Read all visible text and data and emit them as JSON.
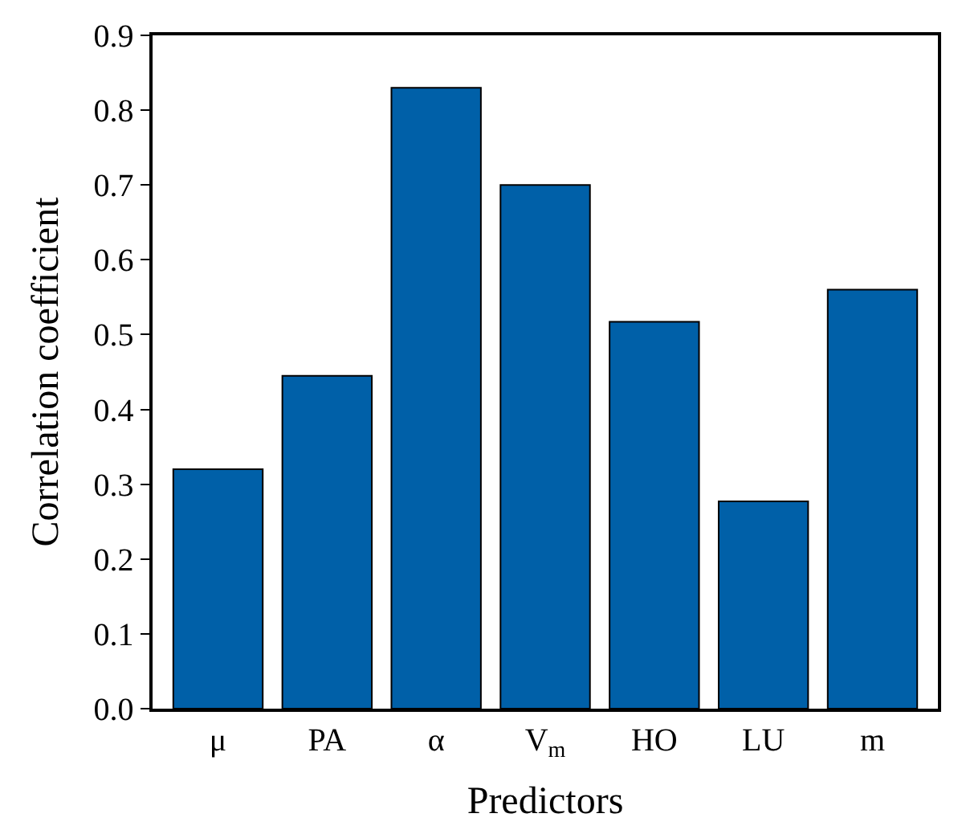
{
  "chart_data": {
    "type": "bar",
    "xlabel": "Predictors",
    "ylabel": "Correlation coefficient",
    "categories": [
      "μ",
      "PA",
      "α",
      "V$_{m}$",
      "HO",
      "LU",
      "m"
    ],
    "values": [
      0.32,
      0.445,
      0.83,
      0.7,
      0.517,
      0.277,
      0.56
    ],
    "color": "#0060a8",
    "ylim": [
      0,
      0.9
    ],
    "yticks": [
      {
        "value": 0,
        "label": "0.0"
      },
      0.1,
      0.2,
      0.3,
      0.4,
      0.5,
      0.6,
      0.7,
      0.8,
      0.9
    ],
    "legend": false
  }
}
